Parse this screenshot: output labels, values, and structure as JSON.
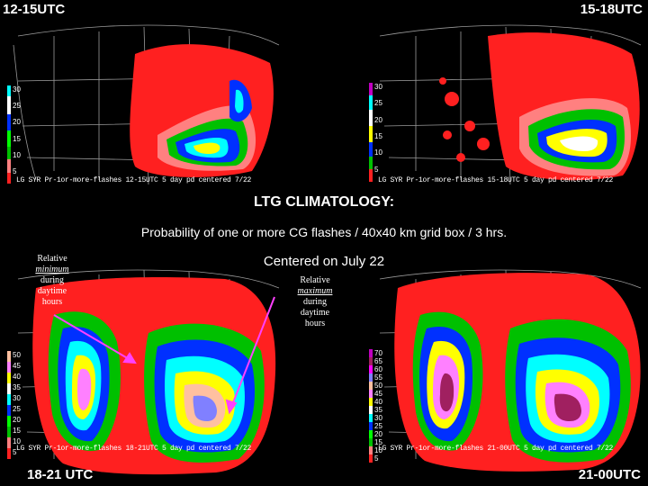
{
  "title": "LTG CLIMATOLOGY:",
  "subtitle": "Probability of one or more CG flashes / 40x40 km grid box / 3 hrs.",
  "centered": "Centered on July 22",
  "annotations": {
    "min": [
      "Relative",
      "minimum",
      "during",
      "daytime",
      "hours"
    ],
    "max": [
      "Relative",
      "maximum",
      "during",
      "daytime",
      "hours"
    ]
  },
  "colors": {
    "5": "#ff2020",
    "10": "#ff8080",
    "15": "#00c000",
    "20": "#00ff00",
    "25": "#0030ff",
    "30": "#00ffff",
    "35": "#ffffff",
    "40": "#ffff00",
    "45": "#ff80ff",
    "50": "#ffc0a0",
    "55": "#8080ff",
    "60": "#ff00ff",
    "65": "#a02060",
    "70": "#c000c0"
  },
  "panels": [
    {
      "label": "12-15UTC",
      "caption": "LG SYR Pr-1or-more-flashes 12-15UTC 5 day pd centered 7/22",
      "legend": [
        "5",
        "10",
        "15",
        "20",
        "25",
        "30"
      ]
    },
    {
      "label": "15-18UTC",
      "caption": "LG SYR Pr-1or-more-flashes 15-18UTC 5 day pd centered 7/22",
      "legend": [
        "5",
        "10",
        "15",
        "20",
        "25",
        "30"
      ]
    },
    {
      "label": "18-21 UTC",
      "caption": "LG SYR Pr-1or-more-flashes 18-21UTC 5 day pd centered 7/22",
      "legend": [
        "5",
        "10",
        "15",
        "20",
        "25",
        "30",
        "35",
        "40",
        "45",
        "50"
      ]
    },
    {
      "label": "21-00UTC",
      "caption": "LG SYR Pr-1or-more-flashes 21-00UTC 5 day pd centered 7/22",
      "legend": [
        "5",
        "10",
        "15",
        "20",
        "25",
        "30",
        "35",
        "40",
        "45",
        "50",
        "55",
        "60",
        "65",
        "70"
      ]
    }
  ]
}
